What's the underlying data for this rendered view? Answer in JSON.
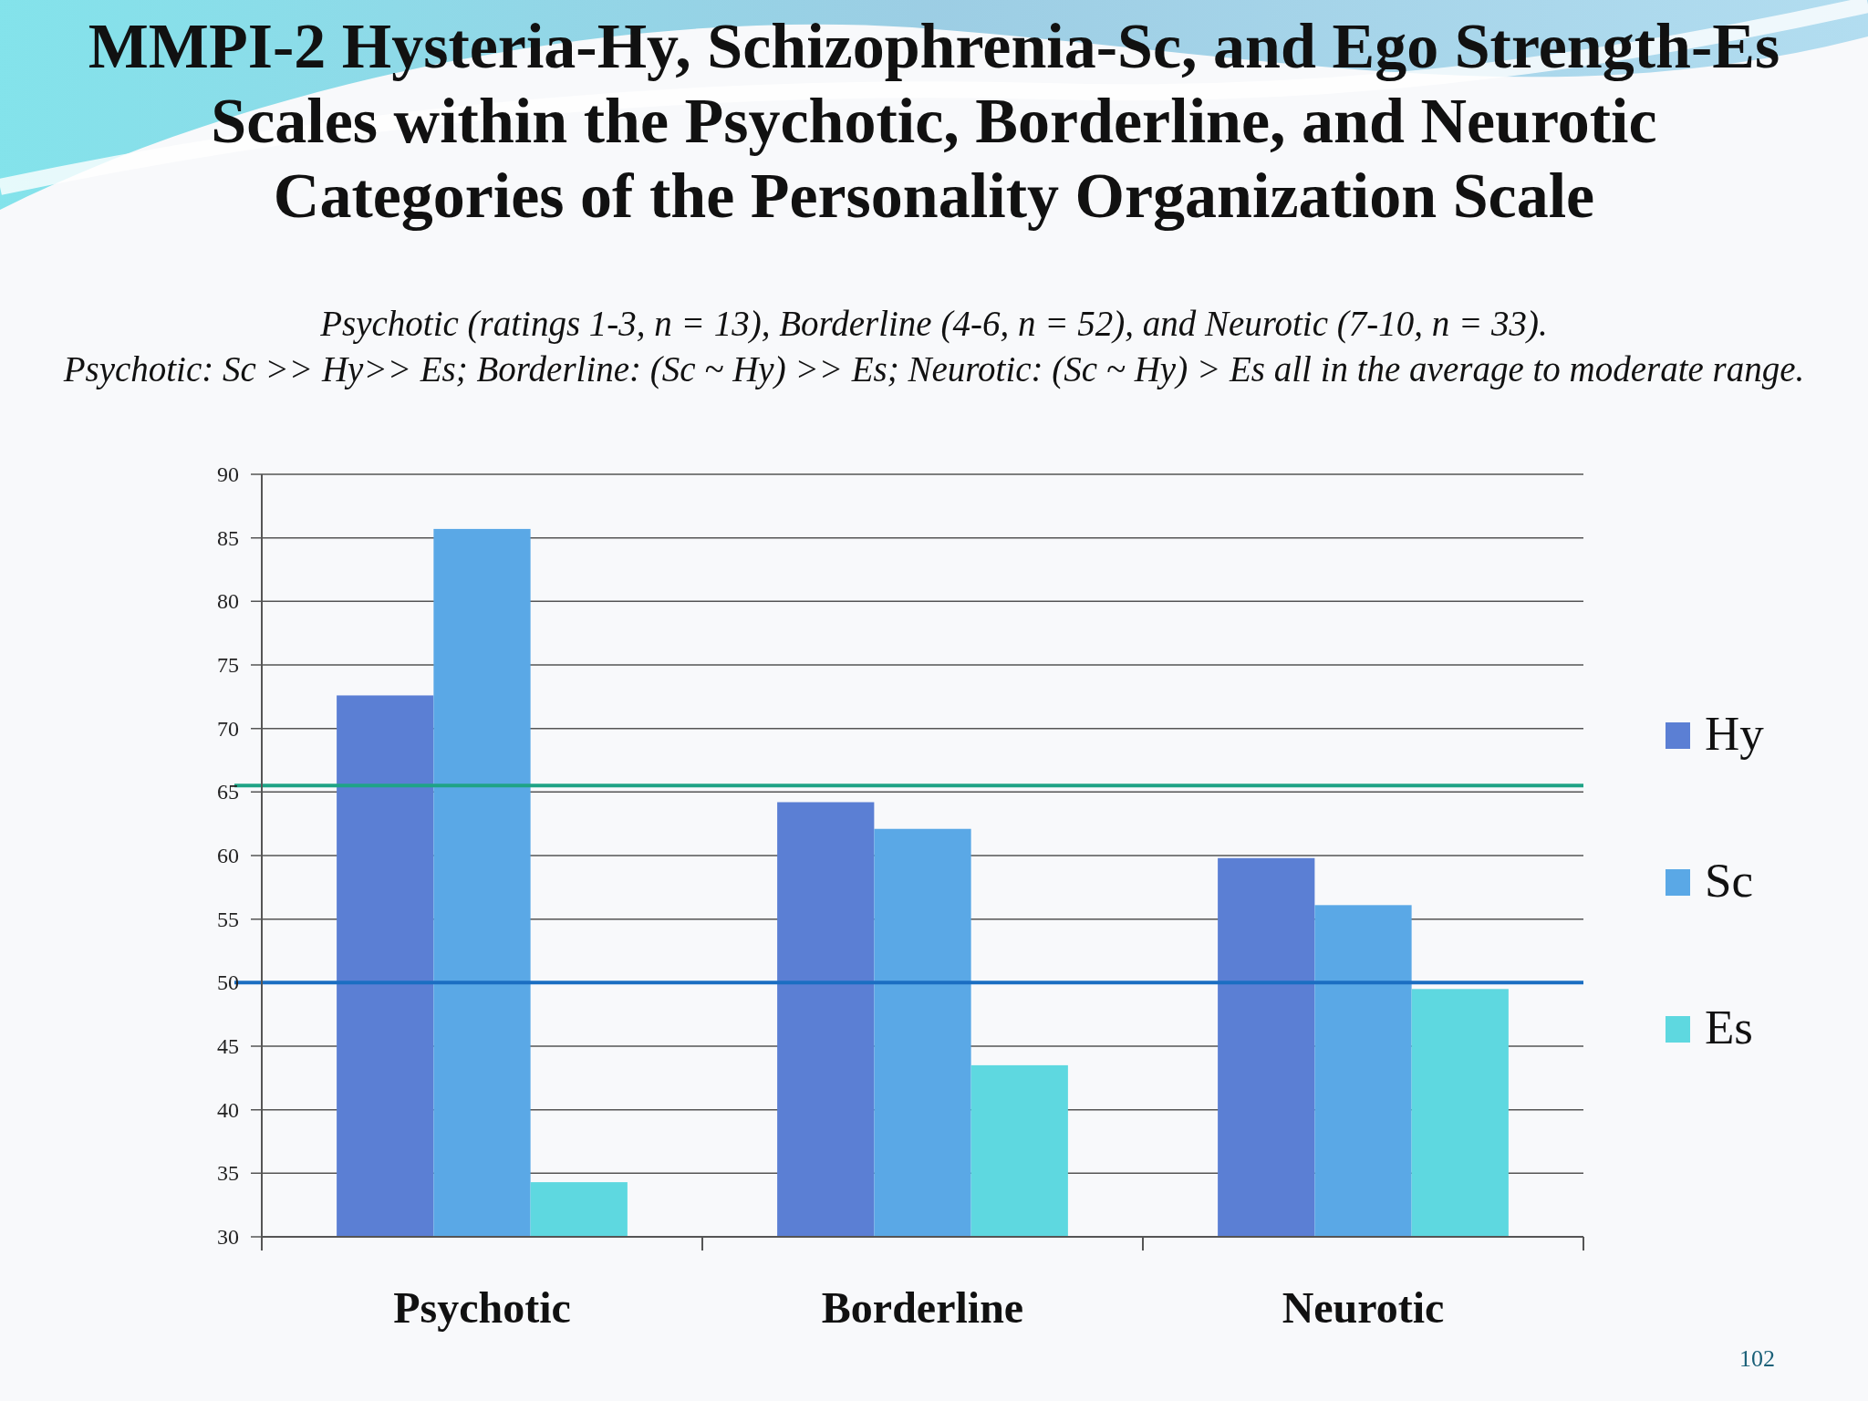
{
  "chart_data": {
    "type": "bar",
    "title": "MMPI-2 Hysteria-Hy, Schizophrenia-Sc, and Ego Strength-Es Scales within the Psychotic, Borderline, and Neurotic Categories of the Personality Organization Scale",
    "subtitle": "Psychotic (ratings 1-3, n = 13), Borderline (4-6, n = 52), and Neurotic (7-10, n = 33).\nPsychotic: Sc >> Hy>> Es; Borderline: (Sc ~ Hy) >> Es; Neurotic: (Sc ~ Hy) > Es all in the average to moderate range.",
    "categories": [
      "Psychotic",
      "Borderline",
      "Neurotic"
    ],
    "series": [
      {
        "name": "Hy",
        "color": "#5b7fd4",
        "values": [
          72.6,
          64.2,
          59.8
        ]
      },
      {
        "name": "Sc",
        "color": "#5aa8e6",
        "values": [
          85.7,
          62.1,
          56.1
        ]
      },
      {
        "name": "Es",
        "color": "#5ed8e0",
        "values": [
          34.3,
          43.5,
          49.5
        ]
      }
    ],
    "ylim": [
      30,
      90
    ],
    "yticks": [
      30,
      35,
      40,
      45,
      50,
      55,
      60,
      65,
      70,
      75,
      80,
      85,
      90
    ],
    "grid": "y",
    "legend": "right",
    "ref_lines": [
      {
        "axis": "y",
        "value": 65.5,
        "color": "#1fa386"
      },
      {
        "axis": "y",
        "value": 50,
        "color": "#1b6ec2"
      }
    ],
    "annotations": [
      "102"
    ]
  }
}
